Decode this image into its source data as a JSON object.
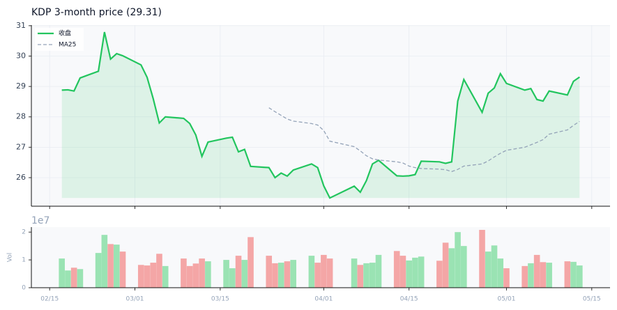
{
  "chart_data": [
    {
      "type": "line",
      "title": "KDP  3-month price (29.31)",
      "x": [
        "02/17",
        "02/18",
        "02/19",
        "02/20",
        "02/23",
        "02/24",
        "02/25",
        "02/26",
        "02/27",
        "03/02",
        "03/03",
        "03/04",
        "03/05",
        "03/06",
        "03/09",
        "03/10",
        "03/11",
        "03/12",
        "03/13",
        "03/16",
        "03/17",
        "03/18",
        "03/19",
        "03/20",
        "03/23",
        "03/24",
        "03/25",
        "03/26",
        "03/27",
        "03/30",
        "03/31",
        "04/01",
        "04/02",
        "04/06",
        "04/07",
        "04/08",
        "04/09",
        "04/10",
        "04/13",
        "04/14",
        "04/15",
        "04/16",
        "04/17",
        "04/20",
        "04/21",
        "04/22",
        "04/23",
        "04/24",
        "04/27",
        "04/28",
        "04/29",
        "04/30",
        "05/01",
        "05/04",
        "05/05",
        "05/06",
        "05/07",
        "05/08",
        "05/11",
        "05/12",
        "05/13"
      ],
      "series": [
        {
          "name": "收盘",
          "color": "#22c55e",
          "values": [
            28.88,
            28.89,
            28.85,
            29.28,
            29.5,
            30.79,
            29.9,
            30.08,
            30.01,
            29.71,
            29.3,
            28.6,
            27.8,
            28.0,
            27.95,
            27.78,
            27.4,
            26.7,
            27.17,
            27.3,
            27.33,
            26.85,
            26.93,
            26.37,
            26.33,
            26.0,
            26.15,
            26.05,
            26.25,
            26.45,
            26.33,
            25.73,
            25.33,
            25.72,
            25.52,
            25.9,
            26.45,
            26.57,
            26.06,
            26.05,
            26.06,
            26.1,
            26.54,
            26.52,
            26.47,
            26.52,
            28.52,
            29.23,
            28.15,
            28.78,
            28.95,
            29.42,
            29.1,
            28.88,
            28.93,
            28.57,
            28.52,
            28.85,
            28.72,
            29.17,
            29.31
          ]
        },
        {
          "name": "MA25",
          "color": "#94a3b8",
          "dashed": true,
          "values": [
            null,
            null,
            null,
            null,
            null,
            null,
            null,
            null,
            null,
            null,
            null,
            null,
            null,
            null,
            null,
            null,
            null,
            null,
            null,
            null,
            null,
            null,
            null,
            null,
            28.3,
            28.17,
            28.05,
            27.93,
            27.86,
            27.78,
            27.73,
            27.55,
            27.2,
            27.02,
            26.88,
            26.72,
            26.62,
            26.58,
            26.52,
            26.48,
            26.38,
            26.33,
            26.3,
            26.28,
            26.26,
            26.2,
            26.27,
            26.38,
            26.45,
            26.55,
            26.68,
            26.8,
            26.9,
            27.0,
            27.08,
            27.16,
            27.25,
            27.43,
            27.57,
            27.72,
            27.85
          ]
        }
      ],
      "fill": true,
      "grid": true,
      "legend": "upper left",
      "ylim": [
        25.06,
        31.02
      ],
      "yticks": [
        26,
        27,
        28,
        29,
        30,
        31
      ],
      "xlim": [
        "02/12",
        "05/18"
      ],
      "xticks": [
        "02/15",
        "03/01",
        "03/15",
        "04/01",
        "04/15",
        "05/01",
        "05/15"
      ]
    },
    {
      "type": "bar",
      "ylabel": "Vol",
      "offset_label": "1e7",
      "values": [
        1.05,
        0.62,
        0.72,
        0.67,
        1.25,
        1.9,
        1.57,
        1.55,
        1.3,
        0.82,
        0.8,
        0.9,
        1.22,
        0.78,
        1.05,
        0.78,
        0.87,
        1.05,
        0.95,
        1.0,
        0.7,
        1.15,
        1.0,
        1.82,
        1.15,
        0.88,
        0.9,
        0.95,
        1.0,
        1.15,
        0.9,
        1.18,
        1.05,
        1.05,
        0.82,
        0.88,
        0.9,
        1.18,
        1.32,
        1.15,
        0.98,
        1.08,
        1.12,
        0.97,
        1.62,
        1.42,
        2.0,
        1.5,
        2.08,
        1.3,
        1.52,
        1.05,
        0.7,
        0.78,
        0.88,
        1.18,
        0.92,
        0.9,
        0.95,
        0.93,
        0.8
      ],
      "up_color": "#9ae3b3",
      "down_color": "#f4a6a6",
      "ylim": [
        0,
        2.18
      ],
      "yticks": [
        0,
        1,
        2
      ],
      "xlim": [
        "02/12",
        "05/18"
      ],
      "xticks": [
        "02/15",
        "03/01",
        "03/15",
        "04/01",
        "04/15",
        "05/01",
        "05/15"
      ]
    }
  ]
}
